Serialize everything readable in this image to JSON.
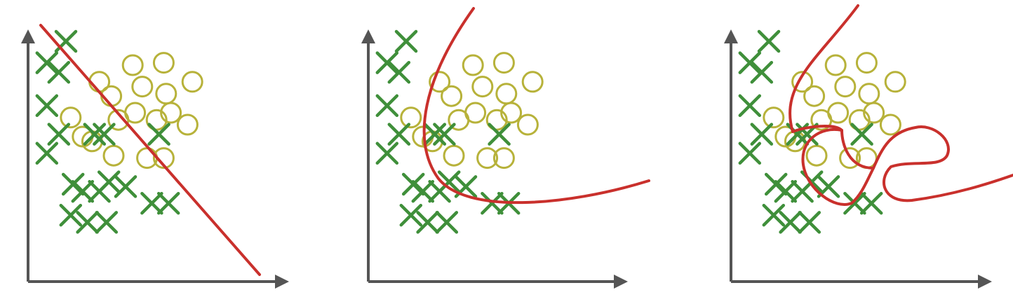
{
  "colors": {
    "axis": "#555555",
    "cross": "#3f8f3a",
    "circle": "#b7b23a",
    "boundary": "#c9302c",
    "background": "#ffffff"
  },
  "panels": [
    {
      "boundary_style": "straight line",
      "crosses": [
        [
          10,
          95
        ],
        [
          2,
          86
        ],
        [
          7,
          82
        ],
        [
          2,
          68
        ],
        [
          7,
          56
        ],
        [
          2,
          48
        ],
        [
          22,
          56
        ],
        [
          28,
          36
        ],
        [
          13,
          35
        ],
        [
          17,
          32
        ],
        [
          12,
          22
        ],
        [
          19,
          19
        ],
        [
          24,
          32
        ],
        [
          27,
          19
        ],
        [
          35,
          34
        ],
        [
          46,
          27
        ],
        [
          53,
          27
        ],
        [
          26,
          56
        ],
        [
          49,
          56
        ]
      ],
      "circles": [
        [
          12,
          63
        ],
        [
          32,
          62
        ],
        [
          38,
          85
        ],
        [
          51,
          86
        ],
        [
          24,
          78
        ],
        [
          29,
          72
        ],
        [
          52,
          73
        ],
        [
          42,
          76
        ],
        [
          63,
          78
        ],
        [
          21,
          53
        ],
        [
          39,
          65
        ],
        [
          48,
          62
        ],
        [
          54,
          65
        ],
        [
          17,
          55
        ],
        [
          61,
          60
        ],
        [
          30,
          47
        ],
        [
          44,
          46
        ],
        [
          51,
          46
        ]
      ]
    },
    {
      "boundary_style": "smooth curve",
      "crosses": [
        [
          10,
          95
        ],
        [
          2,
          86
        ],
        [
          7,
          82
        ],
        [
          2,
          68
        ],
        [
          7,
          56
        ],
        [
          2,
          48
        ],
        [
          22,
          56
        ],
        [
          28,
          36
        ],
        [
          13,
          35
        ],
        [
          17,
          32
        ],
        [
          12,
          22
        ],
        [
          19,
          19
        ],
        [
          24,
          32
        ],
        [
          27,
          19
        ],
        [
          35,
          34
        ],
        [
          46,
          27
        ],
        [
          53,
          27
        ],
        [
          26,
          56
        ],
        [
          49,
          56
        ]
      ],
      "circles": [
        [
          12,
          63
        ],
        [
          32,
          62
        ],
        [
          38,
          85
        ],
        [
          51,
          86
        ],
        [
          24,
          78
        ],
        [
          29,
          72
        ],
        [
          52,
          73
        ],
        [
          42,
          76
        ],
        [
          63,
          78
        ],
        [
          21,
          53
        ],
        [
          39,
          65
        ],
        [
          48,
          62
        ],
        [
          54,
          65
        ],
        [
          17,
          55
        ],
        [
          61,
          60
        ],
        [
          30,
          47
        ],
        [
          44,
          46
        ],
        [
          51,
          46
        ]
      ]
    },
    {
      "boundary_style": "overfit curve",
      "crosses": [
        [
          10,
          95
        ],
        [
          2,
          86
        ],
        [
          7,
          82
        ],
        [
          2,
          68
        ],
        [
          7,
          56
        ],
        [
          2,
          48
        ],
        [
          22,
          56
        ],
        [
          28,
          36
        ],
        [
          13,
          35
        ],
        [
          17,
          32
        ],
        [
          12,
          22
        ],
        [
          19,
          19
        ],
        [
          24,
          32
        ],
        [
          27,
          19
        ],
        [
          35,
          34
        ],
        [
          46,
          27
        ],
        [
          53,
          27
        ],
        [
          26,
          56
        ],
        [
          49,
          56
        ]
      ],
      "circles": [
        [
          12,
          63
        ],
        [
          32,
          62
        ],
        [
          38,
          85
        ],
        [
          51,
          86
        ],
        [
          24,
          78
        ],
        [
          29,
          72
        ],
        [
          52,
          73
        ],
        [
          42,
          76
        ],
        [
          63,
          78
        ],
        [
          21,
          53
        ],
        [
          39,
          65
        ],
        [
          48,
          62
        ],
        [
          54,
          65
        ],
        [
          17,
          55
        ],
        [
          61,
          60
        ],
        [
          30,
          47
        ],
        [
          44,
          46
        ],
        [
          51,
          46
        ]
      ]
    }
  ]
}
